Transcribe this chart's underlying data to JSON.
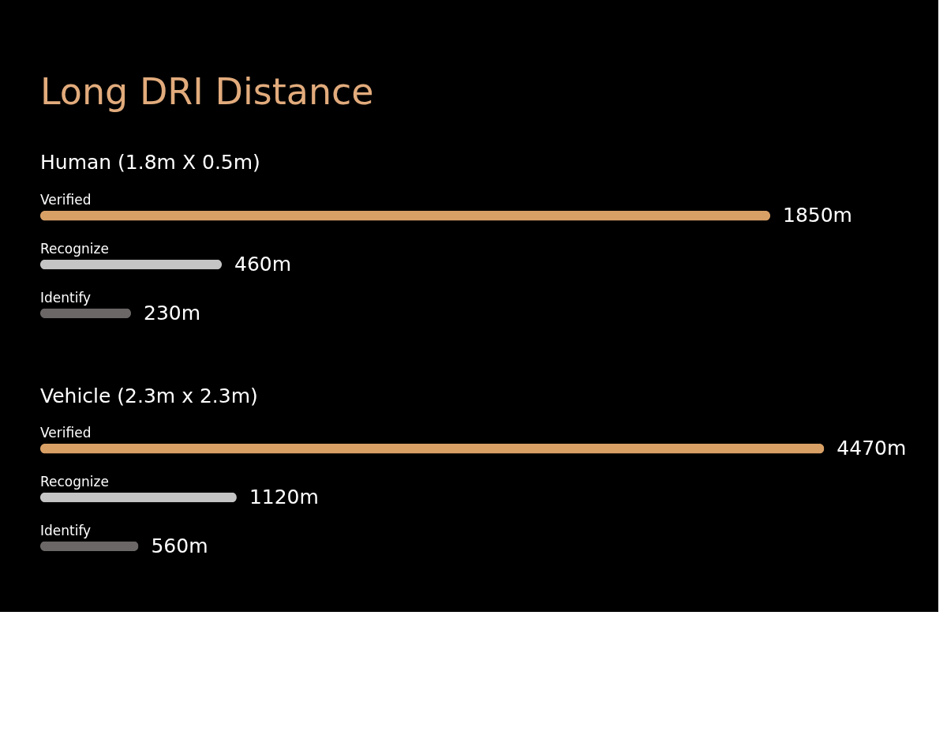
{
  "chart_data": [
    {
      "type": "bar",
      "orientation": "horizontal",
      "title": "Long DRI Distance",
      "subtitle": "Human (1.8m X 0.5m)",
      "categories": [
        "Verified",
        "Recognize",
        "Identify"
      ],
      "values": [
        1850,
        460,
        230
      ],
      "colors": [
        "#d9a066",
        "#c4c4c4",
        "#6b6766"
      ],
      "value_labels": [
        "1850m",
        "460m",
        "230m"
      ],
      "tick_labels": false
    },
    {
      "type": "bar",
      "orientation": "horizontal",
      "title": "Vehicle (2.3m x 2.3m)",
      "categories": [
        "Verified",
        "Recognize",
        "Identify"
      ],
      "values": [
        4470,
        1120,
        560
      ],
      "colors": [
        "#d9a066",
        "#c4c4c4",
        "#6b6766"
      ],
      "value_labels": [
        "4470m",
        "1120m",
        "560m"
      ],
      "tick_labels": false
    }
  ]
}
